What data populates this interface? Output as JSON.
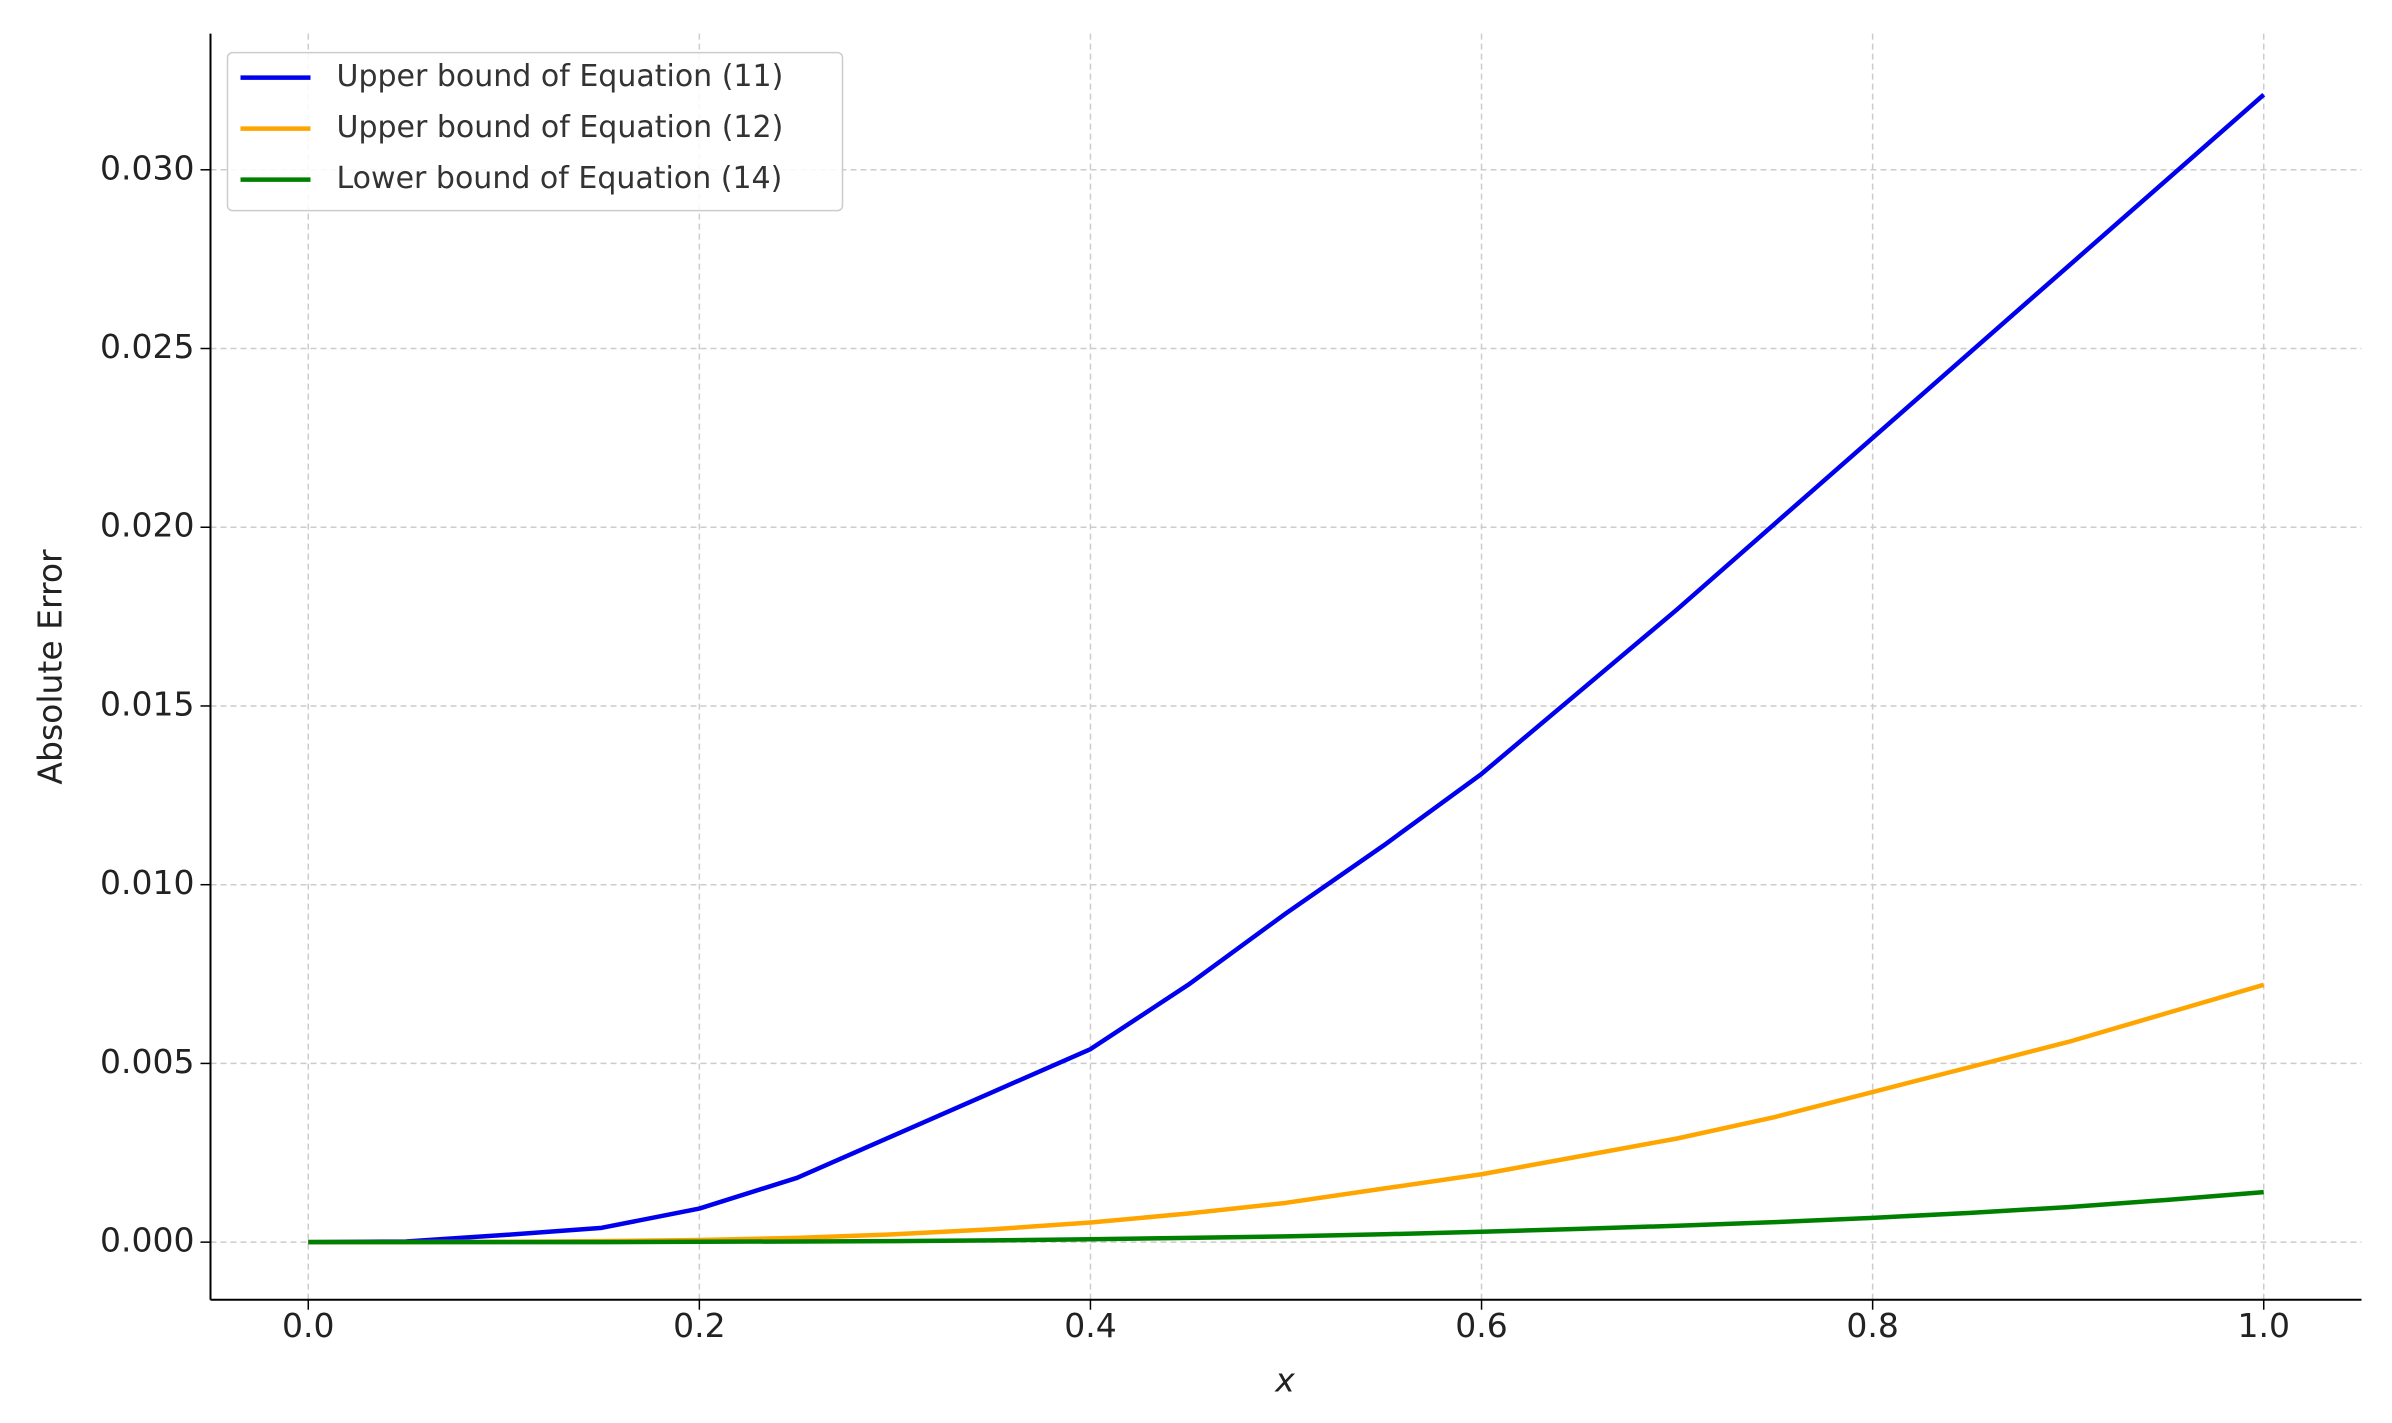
{
  "chart_data": {
    "type": "line",
    "x_label": "x",
    "y_label": "Absolute Error",
    "x": [
      0,
      0.05,
      0.1,
      0.15,
      0.2,
      0.25,
      0.3,
      0.35,
      0.4,
      0.45,
      0.5,
      0.55,
      0.6,
      0.65,
      0.7,
      0.75,
      0.8,
      0.85,
      0.9,
      0.95,
      1.0
    ],
    "series": [
      {
        "name": "Upper bound of Equation (11)",
        "color": "#0000ee",
        "values": [
          0,
          2e-05,
          0.0002,
          0.0004,
          0.00094,
          0.0018,
          0.003,
          0.0042,
          0.0054,
          0.0072,
          0.0092,
          0.0111,
          0.0131,
          0.0154,
          0.0177,
          0.0201,
          0.0225,
          0.0249,
          0.0273,
          0.0297,
          0.0321
        ]
      },
      {
        "name": "Upper bound of Equation (12)",
        "color": "#ffa500",
        "values": [
          0,
          0,
          1e-05,
          3e-05,
          6e-05,
          0.00012,
          0.00022,
          0.00036,
          0.00055,
          0.0008,
          0.0011,
          0.0015,
          0.0019,
          0.0024,
          0.0029,
          0.0035,
          0.0042,
          0.0049,
          0.0056,
          0.0064,
          0.0072
        ]
      },
      {
        "name": "Lower bound of Equation (14)",
        "color": "#008000",
        "values": [
          0,
          0,
          0,
          0,
          1e-05,
          2e-05,
          3e-05,
          5e-05,
          8e-05,
          0.00012,
          0.00016,
          0.00022,
          0.00029,
          0.00037,
          0.00046,
          0.00056,
          0.00068,
          0.00082,
          0.00098,
          0.00118,
          0.0014
        ]
      }
    ],
    "xlim": [
      -0.05,
      1.05
    ],
    "ylim": [
      -0.00161,
      0.03381
    ],
    "xticks": [
      {
        "value": 0,
        "label": "0.0"
      },
      0.2,
      0.4,
      0.6,
      0.8,
      {
        "value": 1,
        "label": "1.0"
      }
    ],
    "yticks": [
      {
        "value": 0,
        "label": "0.000"
      },
      0.005,
      {
        "value": 0.01,
        "label": "0.010"
      },
      0.015,
      {
        "value": 0.02,
        "label": "0.020"
      },
      0.025,
      {
        "value": 0.03,
        "label": "0.030"
      }
    ],
    "grid": true,
    "legend": "upper left"
  }
}
